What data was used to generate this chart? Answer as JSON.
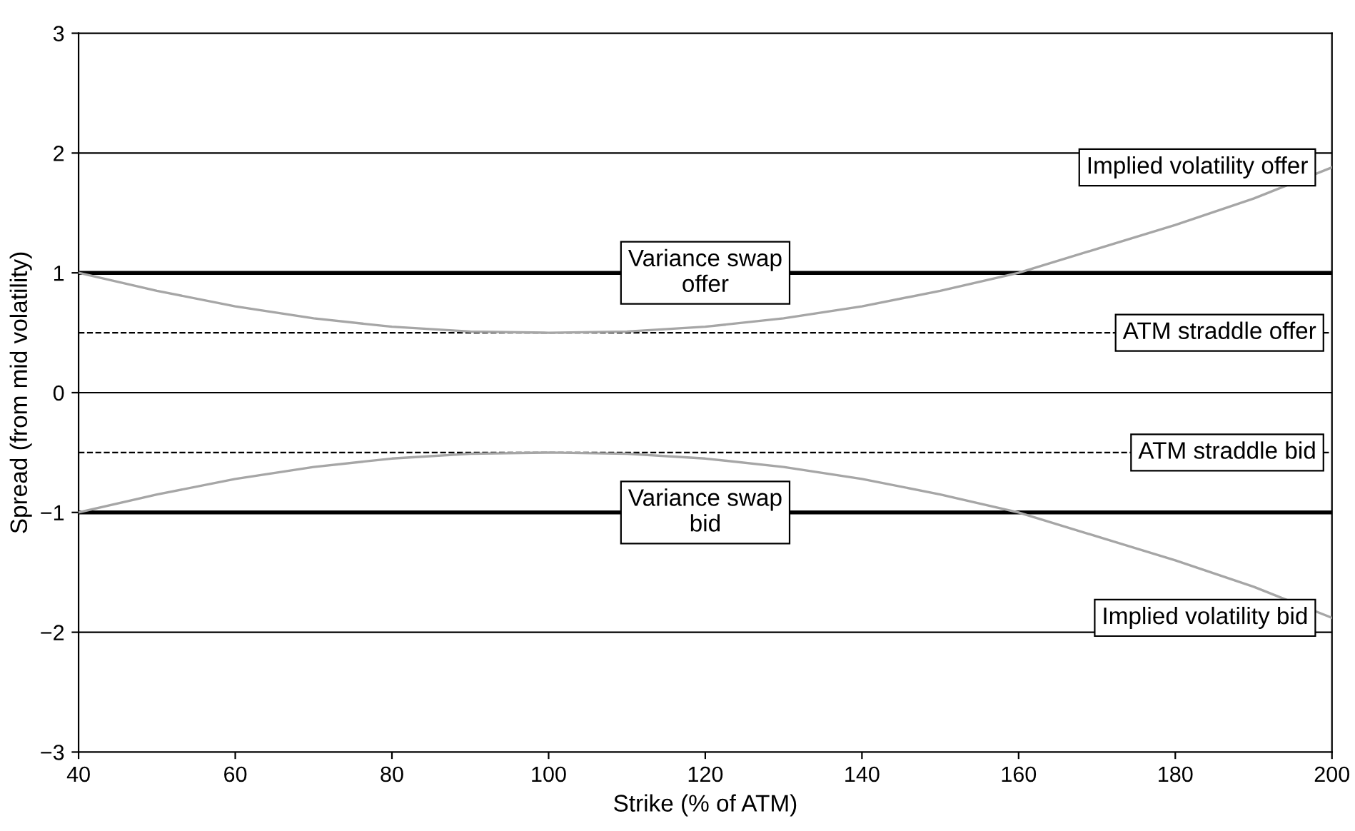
{
  "chart_data": {
    "type": "line",
    "xlabel": "Strike (% of ATM)",
    "ylabel": "Spread (from mid volatility)",
    "x": [
      40,
      50,
      60,
      70,
      80,
      90,
      100,
      110,
      120,
      130,
      140,
      150,
      160,
      170,
      180,
      190,
      200
    ],
    "series": [
      {
        "color": "#a6a6a6",
        "values": [
          1.0,
          0.85,
          0.72,
          0.62,
          0.55,
          0.51,
          0.5,
          0.51,
          0.55,
          0.62,
          0.72,
          0.85,
          1.0,
          1.2,
          1.4,
          1.62,
          1.88
        ]
      },
      {
        "color": "#a6a6a6",
        "values": [
          -1.0,
          -0.85,
          -0.72,
          -0.62,
          -0.55,
          -0.51,
          -0.5,
          -0.51,
          -0.55,
          -0.62,
          -0.72,
          -0.85,
          -1.0,
          -1.2,
          -1.4,
          -1.62,
          -1.88
        ]
      }
    ],
    "ref_lines": [
      {
        "axis": "y",
        "value": 1,
        "label": "Variance swap\noffer",
        "color": "#000000",
        "line_style": "solid"
      },
      {
        "axis": "y",
        "value": -1,
        "label": "Variance swap\nbid",
        "color": "#000000",
        "line_style": "solid"
      },
      {
        "axis": "y",
        "value": 0.5,
        "label": "ATM straddle offer",
        "color": "#000000",
        "line_style": "dashed"
      },
      {
        "axis": "y",
        "value": -0.5,
        "label": "ATM straddle bid",
        "color": "#000000",
        "line_style": "dashed"
      },
      {
        "axis": "y",
        "value": 2,
        "color": "#000000",
        "line_style": "solid"
      },
      {
        "axis": "y",
        "value": 0,
        "color": "#000000",
        "line_style": "solid"
      },
      {
        "axis": "y",
        "value": -2,
        "color": "#000000",
        "line_style": "solid"
      }
    ],
    "annotations": [
      "Implied volatility offer",
      "Implied volatility bid"
    ],
    "xlim": [
      40,
      200
    ],
    "xticks": [
      40,
      60,
      80,
      100,
      120,
      140,
      160,
      180,
      200
    ],
    "ylim": [
      -3,
      3
    ],
    "yticks": [
      {
        "value": -3,
        "label": "−3"
      },
      {
        "value": -2,
        "label": "−2"
      },
      {
        "value": -1,
        "label": "−1"
      },
      0,
      1,
      2,
      3
    ],
    "grid": false,
    "legend": false,
    "marker": "none",
    "line_style": "solid"
  }
}
